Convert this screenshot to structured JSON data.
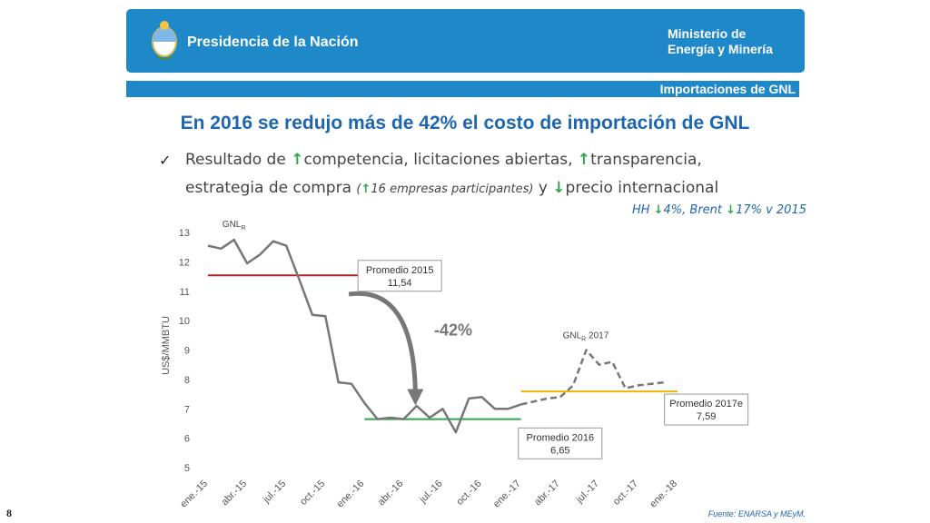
{
  "header": {
    "presidencia": "Presidencia de la Nación",
    "ministerio_line1": "Ministerio de",
    "ministerio_line2": "Energía y Minería",
    "section": "Importaciones de GNL",
    "banner_color": "#1e88c9"
  },
  "title": "En 2016 se redujo más de 42% el costo de importación de GNL",
  "bullet": {
    "check_icon": "✓",
    "up_arrow": "↑",
    "down_arrow": "↓",
    "t1": "Resultado de ",
    "t2": "competencia, licitaciones abiertas, ",
    "t3": "transparencia,",
    "t4": "estrategia de compra ",
    "p1": "(",
    "p2": "16 empresas participantes)",
    "t5": " y ",
    "t6": "precio internacional"
  },
  "note": {
    "n1": "HH ",
    "n2": "4%, Brent ",
    "n3": "17% v 2015"
  },
  "chart_data": {
    "type": "line",
    "ylabel": "US$/MMBTU",
    "ylim": [
      5,
      13
    ],
    "yticks": [
      5,
      6,
      7,
      8,
      9,
      10,
      11,
      12,
      13
    ],
    "xticks": [
      "ene.-15",
      "abr.-15",
      "jul.-15",
      "oct.-15",
      "ene.-16",
      "abr.-16",
      "jul.-16",
      "oct.-16",
      "ene.-17",
      "abr.-17",
      "jul.-17",
      "oct.-17",
      "ene.-18"
    ],
    "series": [
      {
        "name": "GNLR",
        "style": "solid",
        "color": "#777777",
        "x": [
          0,
          1,
          2,
          3,
          4,
          5,
          6,
          7,
          8,
          9,
          10,
          11,
          12,
          13,
          14,
          15,
          16,
          17,
          18,
          19,
          20,
          21,
          22,
          23,
          24
        ],
        "values": [
          12.55,
          12.45,
          12.75,
          11.95,
          12.25,
          12.7,
          12.55,
          11.4,
          10.2,
          10.15,
          7.9,
          7.85,
          7.2,
          6.65,
          6.7,
          6.65,
          7.1,
          6.7,
          7.0,
          6.2,
          7.35,
          7.4,
          7.0,
          7.0,
          7.15
        ]
      },
      {
        "name": "GNLR 2017",
        "style": "dashed",
        "color": "#777777",
        "x": [
          24,
          26,
          27,
          28,
          29,
          30,
          31,
          32,
          33,
          35
        ],
        "values": [
          7.15,
          7.35,
          7.4,
          7.8,
          9.0,
          8.5,
          8.6,
          7.7,
          7.8,
          7.9
        ]
      }
    ],
    "averages": [
      {
        "label_line1": "Promedio 2015",
        "label_line2": "11,54",
        "value": 11.54,
        "x_start": 0,
        "x_end": 12,
        "color": "#b52025"
      },
      {
        "label_line1": "Promedio 2016",
        "label_line2": "6,65",
        "value": 6.65,
        "x_start": 12,
        "x_end": 24,
        "color": "#2ea84b"
      },
      {
        "label_line1": "Promedio 2017e",
        "label_line2": "7,59",
        "value": 7.59,
        "x_start": 24,
        "x_end": 36,
        "color": "#f0b400"
      }
    ],
    "series_labels": {
      "gnl_main": "GNL",
      "gnl_sub": "R",
      "gnl2017_sub": "R",
      "gnl2017_tail": " 2017"
    },
    "annotation": "-42%"
  },
  "footer": {
    "page": "8",
    "source": "Fuente: ENARSA y MEyM."
  }
}
